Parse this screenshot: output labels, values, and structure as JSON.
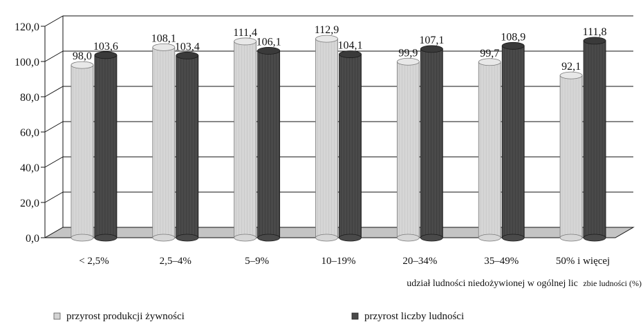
{
  "chart_data": {
    "type": "bar",
    "title": "",
    "categories": [
      "< 2,5%",
      "2,5–4%",
      "5–9%",
      "10–19%",
      "20–34%",
      "35–49%",
      "50% i więcej"
    ],
    "series": [
      {
        "name": "przyrost produkcji żywności",
        "values": [
          98.0,
          108.1,
          111.4,
          112.9,
          99.9,
          99.7,
          92.1
        ],
        "labels": [
          "98,0",
          "108,1",
          "111,4",
          "112,9",
          "99,9",
          "99,7",
          "92,1"
        ],
        "color": "#d4d4d4"
      },
      {
        "name": "przyrost liczby ludności",
        "values": [
          103.6,
          103.4,
          106.1,
          104.1,
          107.1,
          108.9,
          111.8
        ],
        "labels": [
          "103,6",
          "103,4",
          "106,1",
          "104,1",
          "107,1",
          "108,9",
          "111,8"
        ],
        "color": "#4a4a4a"
      }
    ],
    "xlabel_main": "udział ludności niedożywionej w ogólnej lic",
    "xlabel_small": "zbie ludności (%)",
    "ylim": [
      0,
      120
    ],
    "yticks": [
      "0,0",
      "20,0",
      "40,0",
      "60,0",
      "80,0",
      "100,0",
      "120,0"
    ],
    "grid": true,
    "legend_position": "bottom"
  }
}
